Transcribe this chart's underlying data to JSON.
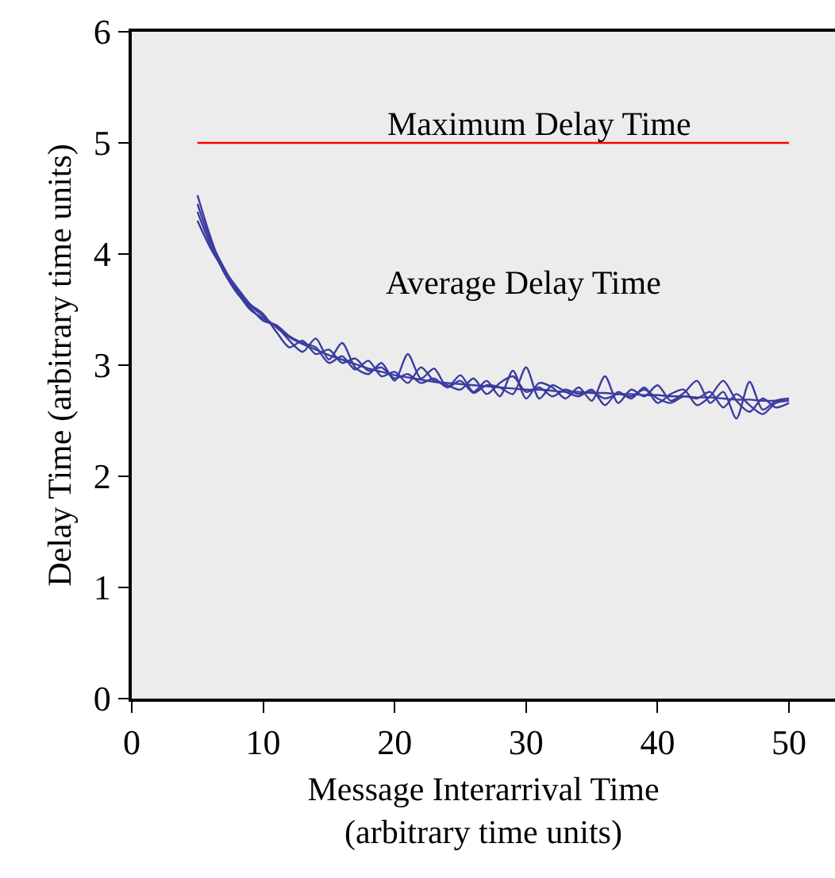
{
  "chart_data": {
    "type": "line",
    "xlabel": "Message Interarrival Time\n(arbitrary time units)",
    "ylabel": "Delay Time (arbitrary time units)",
    "x": [
      5,
      6,
      7,
      8,
      9,
      10,
      11,
      12,
      13,
      14,
      15,
      16,
      17,
      18,
      19,
      20,
      21,
      22,
      23,
      24,
      25,
      26,
      27,
      28,
      29,
      30,
      31,
      32,
      33,
      34,
      35,
      36,
      37,
      38,
      39,
      40,
      41,
      42,
      43,
      44,
      45,
      46,
      47,
      48,
      49,
      50
    ],
    "xlim": [
      0,
      53.5
    ],
    "xticks": [
      0,
      10,
      20,
      30,
      40,
      50
    ],
    "ylim": [
      0,
      6
    ],
    "yticks": [
      0,
      1,
      2,
      3,
      4,
      5,
      6
    ],
    "grid": false,
    "marker": "none",
    "line_style": "solid",
    "series": [
      {
        "color": "#3a3ca0",
        "values": [
          4.45,
          4.12,
          3.88,
          3.68,
          3.54,
          3.44,
          3.34,
          3.25,
          3.19,
          3.14,
          3.09,
          3.05,
          3.01,
          2.97,
          2.94,
          2.91,
          2.89,
          2.87,
          2.85,
          2.84,
          2.83,
          2.82,
          2.81,
          2.8,
          2.79,
          2.78,
          2.78,
          2.77,
          2.76,
          2.76,
          2.75,
          2.75,
          2.74,
          2.74,
          2.73,
          2.73,
          2.72,
          2.72,
          2.71,
          2.71,
          2.7,
          2.69,
          2.69,
          2.68,
          2.68,
          2.68
        ]
      },
      {
        "color": "#3a3ca0",
        "values": [
          4.53,
          4.15,
          3.84,
          3.66,
          3.5,
          3.42,
          3.35,
          3.22,
          3.12,
          3.24,
          3.05,
          3.2,
          2.98,
          2.92,
          3.02,
          2.86,
          3.1,
          2.88,
          2.97,
          2.8,
          2.91,
          2.76,
          2.86,
          2.72,
          2.95,
          2.7,
          2.84,
          2.8,
          2.7,
          2.8,
          2.68,
          2.9,
          2.66,
          2.78,
          2.72,
          2.82,
          2.68,
          2.75,
          2.86,
          2.66,
          2.76,
          2.52,
          2.85,
          2.6,
          2.68,
          2.7
        ]
      },
      {
        "color": "#3a3ca0",
        "values": [
          4.3,
          4.05,
          3.86,
          3.7,
          3.55,
          3.46,
          3.3,
          3.16,
          3.22,
          3.1,
          3.14,
          3.02,
          3.06,
          2.95,
          2.98,
          2.88,
          2.92,
          2.84,
          2.88,
          2.8,
          2.86,
          2.75,
          2.82,
          2.8,
          2.74,
          2.98,
          2.7,
          2.82,
          2.76,
          2.72,
          2.78,
          2.64,
          2.76,
          2.7,
          2.8,
          2.66,
          2.74,
          2.78,
          2.64,
          2.72,
          2.86,
          2.68,
          2.58,
          2.7,
          2.62,
          2.66
        ]
      },
      {
        "color": "#3a3ca0",
        "values": [
          4.38,
          4.08,
          3.84,
          3.65,
          3.52,
          3.4,
          3.36,
          3.26,
          3.2,
          3.16,
          3.02,
          3.08,
          2.96,
          3.04,
          2.9,
          2.94,
          2.84,
          2.98,
          2.86,
          2.82,
          2.78,
          2.88,
          2.74,
          2.84,
          2.9,
          2.76,
          2.8,
          2.72,
          2.78,
          2.74,
          2.76,
          2.7,
          2.74,
          2.72,
          2.78,
          2.7,
          2.66,
          2.72,
          2.7,
          2.76,
          2.62,
          2.74,
          2.64,
          2.56,
          2.66,
          2.68
        ]
      },
      {
        "color": "#ff0000",
        "x": [
          5,
          50
        ],
        "values": [
          5,
          5
        ]
      }
    ],
    "annotations": [
      "Maximum Delay Time",
      "Average Delay Time"
    ]
  }
}
